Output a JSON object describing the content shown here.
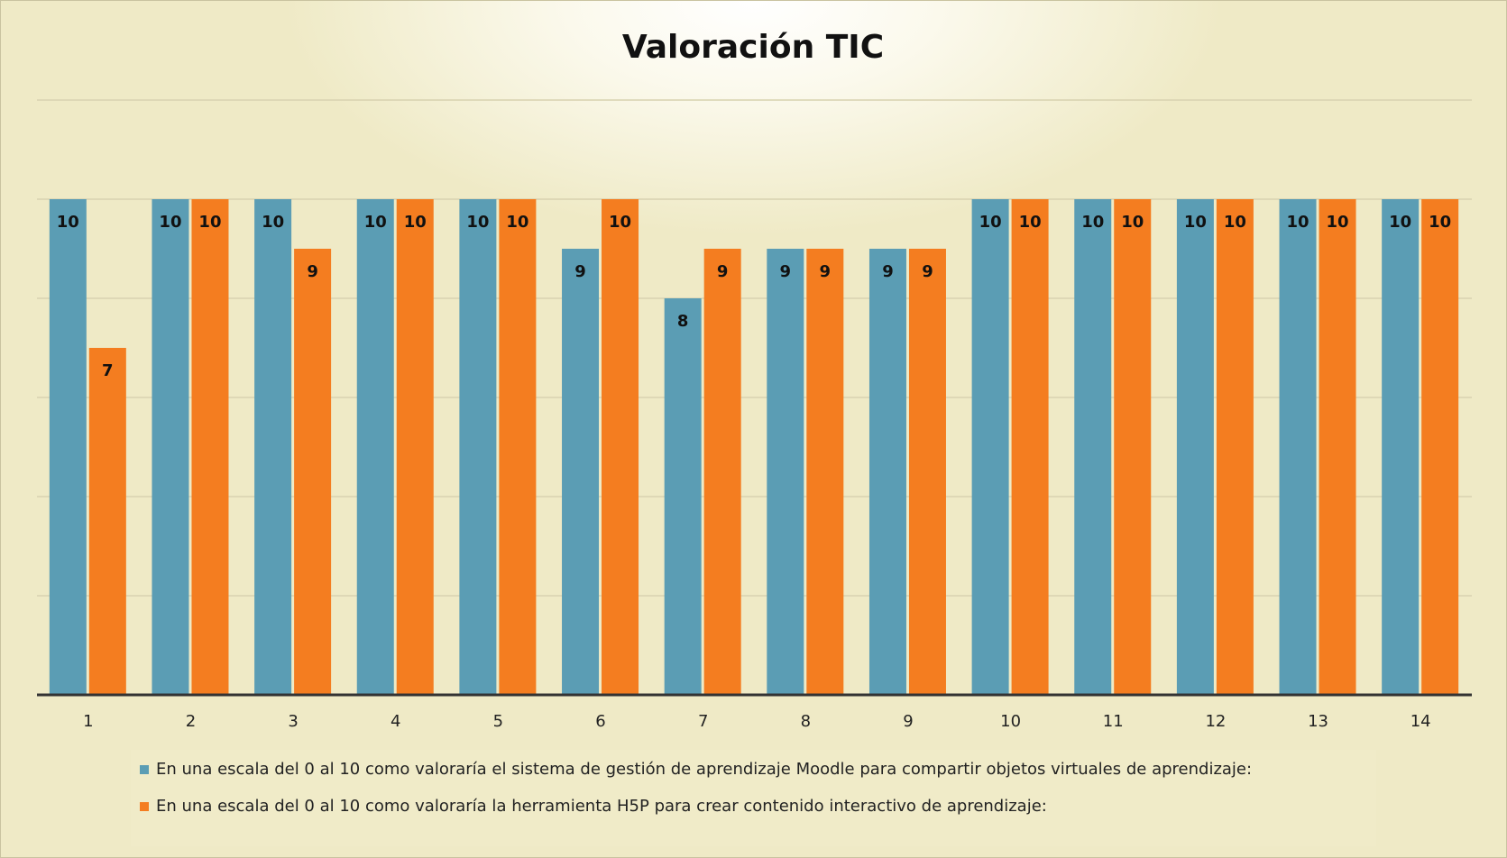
{
  "chart_data": {
    "type": "bar",
    "title": "Valoración TIC",
    "categories": [
      "1",
      "2",
      "3",
      "4",
      "5",
      "6",
      "7",
      "8",
      "9",
      "10",
      "11",
      "12",
      "13",
      "14"
    ],
    "series": [
      {
        "name": "En una escala del 0 al 10 como valoraría el sistema de gestión de aprendizaje Moodle para compartir objetos virtuales de aprendizaje:",
        "color": "#5b9db4",
        "values": [
          10,
          10,
          10,
          10,
          10,
          9,
          8,
          9,
          9,
          10,
          10,
          10,
          10,
          10
        ]
      },
      {
        "name": "En una escala del 0 al 10 como valoraría la herramienta H5P para crear contenido interactivo de aprendizaje:",
        "color": "#f47d20",
        "values": [
          7,
          10,
          9,
          10,
          10,
          10,
          9,
          9,
          9,
          10,
          10,
          10,
          10,
          10
        ]
      }
    ],
    "ylim": [
      0,
      12
    ],
    "yticks": [
      0,
      2,
      4,
      6,
      8,
      10,
      12
    ],
    "grid": true,
    "legend": "bottom"
  }
}
